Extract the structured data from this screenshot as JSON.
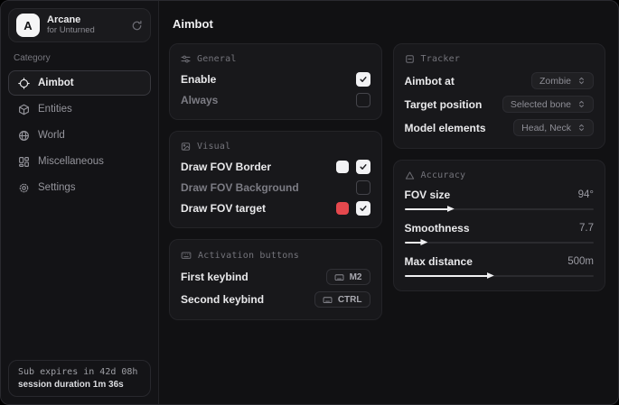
{
  "sidebar": {
    "brand": {
      "avatar_letter": "A",
      "name": "Arcane",
      "subtitle": "for Unturned"
    },
    "category_label": "Category",
    "items": [
      {
        "label": "Aimbot",
        "icon": "crosshair-icon",
        "selected": true
      },
      {
        "label": "Entities",
        "icon": "cube-icon",
        "selected": false
      },
      {
        "label": "World",
        "icon": "globe-icon",
        "selected": false
      },
      {
        "label": "Miscellaneous",
        "icon": "grid-icon",
        "selected": false
      },
      {
        "label": "Settings",
        "icon": "gear-icon",
        "selected": false
      }
    ],
    "status": {
      "line1": "Sub expires in 42d 08h",
      "line2": "session duration 1m 36s"
    }
  },
  "main": {
    "title": "Aimbot",
    "general": {
      "header": "General",
      "rows": [
        {
          "label": "Enable",
          "checked": true
        },
        {
          "label": "Always",
          "checked": false
        }
      ]
    },
    "visual": {
      "header": "Visual",
      "rows": [
        {
          "label": "Draw FOV Border",
          "swatch": "#f2f2f4",
          "checked": true
        },
        {
          "label": "Draw FOV Background",
          "swatch": null,
          "checked": false
        },
        {
          "label": "Draw FOV target",
          "swatch": "#e5484d",
          "checked": true
        }
      ]
    },
    "activation": {
      "header": "Activation buttons",
      "rows": [
        {
          "label": "First keybind",
          "key": "M2"
        },
        {
          "label": "Second keybind",
          "key": "CTRL"
        }
      ]
    },
    "tracker": {
      "header": "Tracker",
      "rows": [
        {
          "label": "Aimbot at",
          "value": "Zombie"
        },
        {
          "label": "Target position",
          "value": "Selected bone"
        },
        {
          "label": "Model elements",
          "value": "Head, Neck"
        }
      ]
    },
    "accuracy": {
      "header": "Accuracy",
      "rows": [
        {
          "label": "FOV size",
          "value": "94°",
          "pct": 24
        },
        {
          "label": "Smoothness",
          "value": "7.7",
          "pct": 10
        },
        {
          "label": "Max distance",
          "value": "500m",
          "pct": 45
        }
      ]
    }
  },
  "colors": {
    "swatch_white": "#f2f2f4",
    "swatch_red": "#e5484d"
  }
}
